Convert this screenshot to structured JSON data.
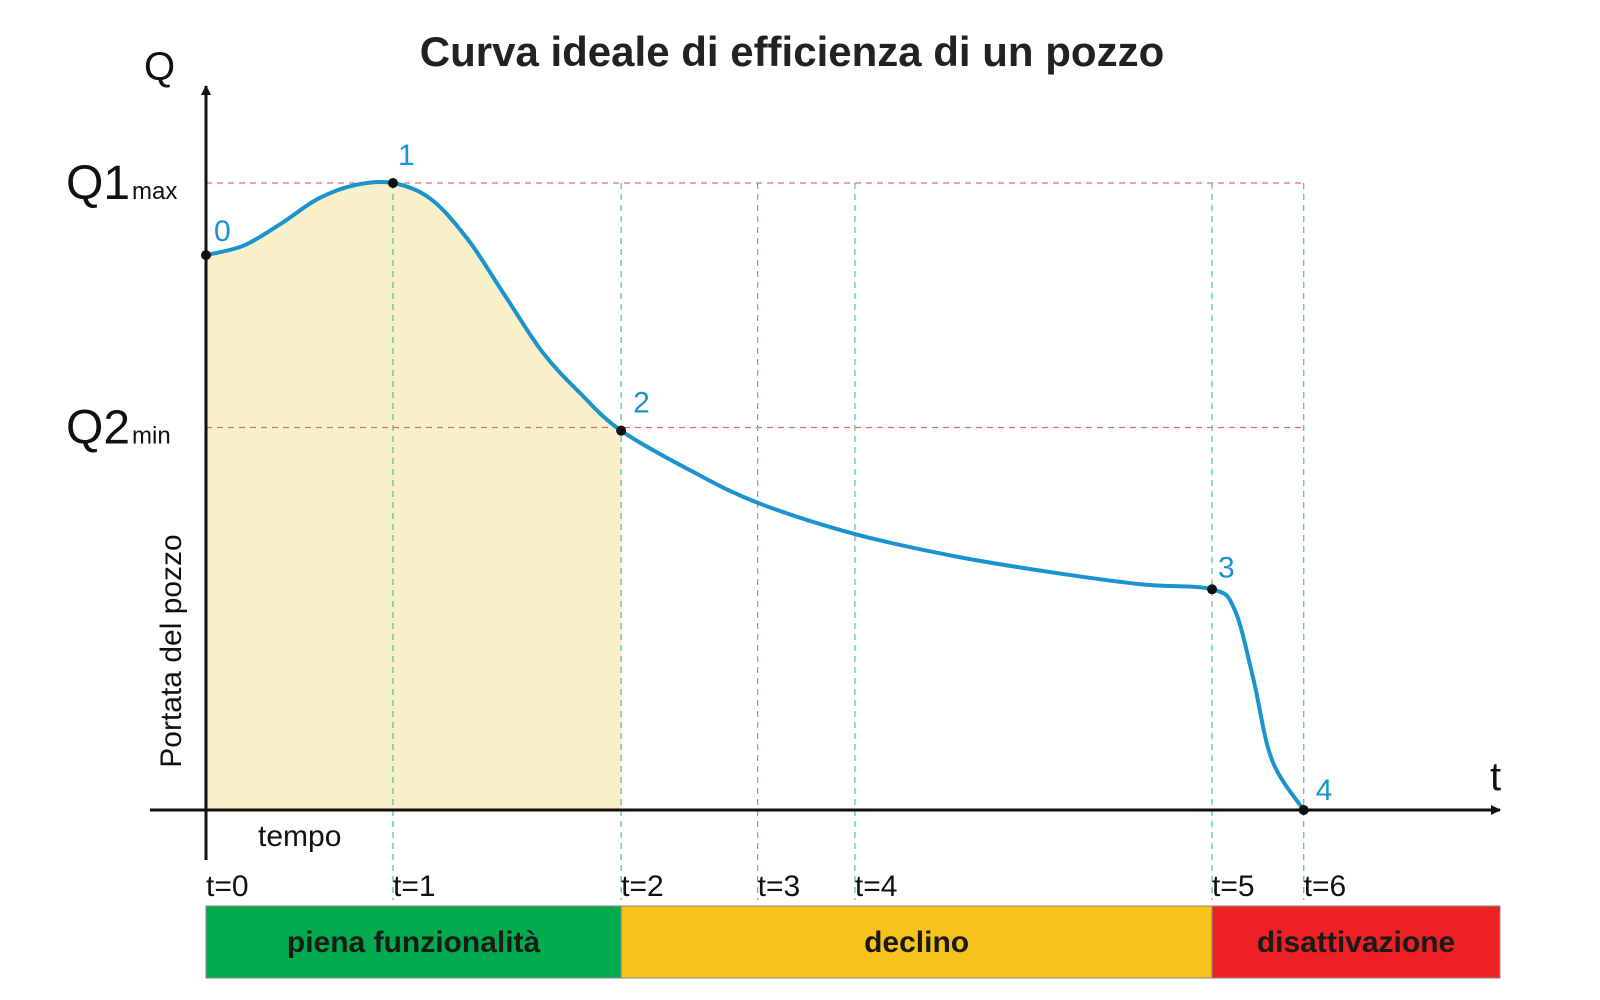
{
  "chart_data": {
    "type": "line",
    "title": "Curva ideale di efficienza di un pozzo",
    "ylabel": "Portata del pozzo",
    "xlabel": "tempo",
    "x_axis_symbol": "t",
    "y_axis_symbol": "Q",
    "x": [
      0,
      1,
      2,
      3,
      4,
      5,
      6
    ],
    "y_levels": {
      "Q1max": 1.0,
      "Q2min": 0.61,
      "zero": 0
    },
    "y_level_labels": [
      {
        "main": "Q1",
        "sub": "max",
        "level": "Q1max"
      },
      {
        "main": "Q2",
        "sub": "min",
        "level": "Q2min"
      }
    ],
    "ticks": [
      {
        "t": 0,
        "label": "t=0"
      },
      {
        "t": 1,
        "label": "t=1"
      },
      {
        "t": 2,
        "label": "t=2"
      },
      {
        "t": 3,
        "label": "t=3"
      },
      {
        "t": 4,
        "label": "t=4"
      },
      {
        "t": 5,
        "label": "t=5"
      },
      {
        "t": 6,
        "label": "t=6"
      }
    ],
    "tick_positions": [
      0,
      1,
      2.22,
      2.95,
      3.47,
      5.38,
      5.87
    ],
    "curve": [
      {
        "t": 0.0,
        "q": 0.885
      },
      {
        "t": 0.2,
        "q": 0.9
      },
      {
        "t": 0.4,
        "q": 0.935
      },
      {
        "t": 0.6,
        "q": 0.975
      },
      {
        "t": 0.8,
        "q": 0.997
      },
      {
        "t": 1.0,
        "q": 1.0
      },
      {
        "t": 1.2,
        "q": 0.975
      },
      {
        "t": 1.4,
        "q": 0.91
      },
      {
        "t": 1.6,
        "q": 0.82
      },
      {
        "t": 1.8,
        "q": 0.73
      },
      {
        "t": 2.0,
        "q": 0.665
      },
      {
        "t": 2.22,
        "q": 0.605
      },
      {
        "t": 2.6,
        "q": 0.54
      },
      {
        "t": 2.95,
        "q": 0.49
      },
      {
        "t": 3.47,
        "q": 0.44
      },
      {
        "t": 4.0,
        "q": 0.405
      },
      {
        "t": 4.5,
        "q": 0.38
      },
      {
        "t": 5.0,
        "q": 0.36
      },
      {
        "t": 5.38,
        "q": 0.352
      },
      {
        "t": 5.5,
        "q": 0.32
      },
      {
        "t": 5.6,
        "q": 0.21
      },
      {
        "t": 5.7,
        "q": 0.08
      },
      {
        "t": 5.87,
        "q": 0.0
      }
    ],
    "key_points": [
      {
        "label": "0",
        "t": 0.0,
        "q": 0.885
      },
      {
        "label": "1",
        "t": 1.0,
        "q": 1.0
      },
      {
        "label": "2",
        "t": 2.22,
        "q": 0.605
      },
      {
        "label": "3",
        "t": 5.38,
        "q": 0.352
      },
      {
        "label": "4",
        "t": 5.87,
        "q": 0.0
      }
    ],
    "shaded_region": {
      "t_start": 0,
      "t_end": 2.22,
      "color": "#f8f0c8"
    },
    "phases": [
      {
        "label": "piena funzionalità",
        "t_start": 0,
        "t_end": 2.22,
        "color": "#00ab4e"
      },
      {
        "label": "declino",
        "t_start": 2.22,
        "t_end": 5.38,
        "color": "#f8c21c"
      },
      {
        "label": "disattivazione",
        "t_start": 5.38,
        "t_end": 6.5,
        "color": "#ed2024"
      }
    ],
    "colors": {
      "curve": "#1a93cf",
      "point_label": "#1a93cf",
      "point": "#111111",
      "h_guides": "#e26d6d",
      "v_guides": "#5fc49a",
      "axis": "#111111"
    },
    "grid": false
  }
}
